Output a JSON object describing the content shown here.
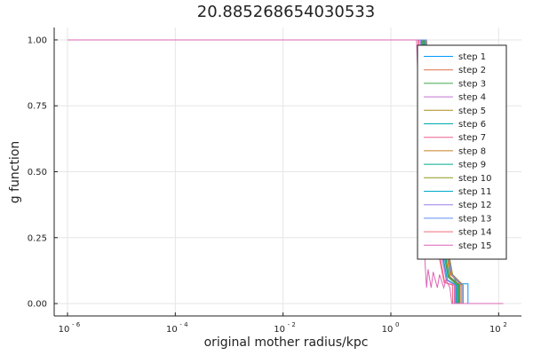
{
  "chart_data": {
    "type": "line",
    "title": "20.885268654030533",
    "xlabel": "original mother radius/kpc",
    "ylabel": "g function",
    "x_scale": "log10",
    "xlim": [
      1e-06,
      150
    ],
    "ylim": [
      -0.02,
      1.02
    ],
    "x_ticks": [
      {
        "base": "10",
        "exp": "- 6",
        "value": 1e-06
      },
      {
        "base": "10",
        "exp": "- 4",
        "value": 0.0001
      },
      {
        "base": "10",
        "exp": "- 2",
        "value": 0.01
      },
      {
        "base": "10",
        "exp": "0",
        "value": 1
      },
      {
        "base": "10",
        "exp": "2",
        "value": 100
      }
    ],
    "y_ticks": [
      "0.00",
      "0.25",
      "0.50",
      "0.75",
      "1.00"
    ],
    "grid": true,
    "legend_position": "right",
    "series": [
      {
        "name": "step 1",
        "color": "#009AFA",
        "x": [
          1e-06,
          4.2,
          5.0,
          6.5,
          9.0,
          13.0,
          17.0,
          27.0,
          27.0,
          120
        ],
        "y": [
          1.0,
          1.0,
          0.78,
          0.5,
          0.28,
          0.12,
          0.075,
          0.075,
          0.0,
          0.0
        ]
      },
      {
        "name": "step 2",
        "color": "#E36F47",
        "x": [
          1e-06,
          4.4,
          5.2,
          6.8,
          9.4,
          13.0,
          20.0,
          20.0,
          120
        ],
        "y": [
          1.0,
          1.0,
          0.77,
          0.49,
          0.27,
          0.11,
          0.07,
          0.0,
          0.0
        ]
      },
      {
        "name": "step 3",
        "color": "#3EA44E",
        "x": [
          1e-06,
          4.0,
          4.8,
          6.2,
          8.6,
          12.0,
          18.0,
          18.0,
          120
        ],
        "y": [
          1.0,
          1.0,
          0.76,
          0.48,
          0.26,
          0.1,
          0.07,
          0.0,
          0.0
        ]
      },
      {
        "name": "step 4",
        "color": "#C371D2",
        "x": [
          1e-06,
          3.6,
          4.3,
          5.6,
          7.8,
          11.0,
          16.0,
          16.0,
          120
        ],
        "y": [
          1.0,
          1.0,
          0.76,
          0.47,
          0.25,
          0.09,
          0.07,
          0.0,
          0.0
        ]
      },
      {
        "name": "step 5",
        "color": "#AC8D18",
        "x": [
          1e-06,
          4.6,
          5.5,
          7.2,
          10.0,
          14.0,
          22.0,
          22.0,
          120
        ],
        "y": [
          1.0,
          1.0,
          0.78,
          0.5,
          0.28,
          0.11,
          0.07,
          0.0,
          0.0
        ]
      },
      {
        "name": "step 6",
        "color": "#00A9AD",
        "x": [
          1e-06,
          3.8,
          4.6,
          6.0,
          8.3,
          11.5,
          17.0,
          17.0,
          120
        ],
        "y": [
          1.0,
          1.0,
          0.77,
          0.49,
          0.26,
          0.1,
          0.07,
          0.0,
          0.0
        ]
      },
      {
        "name": "step 7",
        "color": "#ED5E93",
        "x": [
          1e-06,
          3.3,
          4.0,
          5.2,
          7.2,
          10.0,
          15.0,
          15.0,
          120
        ],
        "y": [
          1.0,
          1.0,
          0.75,
          0.46,
          0.24,
          0.08,
          0.07,
          0.0,
          0.0
        ]
      },
      {
        "name": "step 8",
        "color": "#C68125",
        "x": [
          1e-06,
          4.3,
          5.1,
          6.7,
          9.2,
          12.8,
          19.0,
          19.0,
          120
        ],
        "y": [
          1.0,
          1.0,
          0.77,
          0.49,
          0.27,
          0.1,
          0.07,
          0.0,
          0.0
        ]
      },
      {
        "name": "step 9",
        "color": "#00A98D",
        "x": [
          1e-06,
          4.1,
          4.9,
          6.4,
          8.8,
          12.2,
          18.5,
          18.5,
          120
        ],
        "y": [
          1.0,
          1.0,
          0.77,
          0.48,
          0.26,
          0.1,
          0.07,
          0.0,
          0.0
        ]
      },
      {
        "name": "step 10",
        "color": "#8E971D",
        "x": [
          1e-06,
          3.9,
          4.7,
          6.1,
          8.5,
          11.8,
          17.5,
          17.5,
          120
        ],
        "y": [
          1.0,
          1.0,
          0.76,
          0.48,
          0.26,
          0.1,
          0.07,
          0.0,
          0.0
        ]
      },
      {
        "name": "step 11",
        "color": "#00A8CB",
        "x": [
          1e-06,
          3.7,
          4.4,
          5.8,
          8.0,
          11.2,
          16.5,
          16.5,
          120
        ],
        "y": [
          1.0,
          1.0,
          0.76,
          0.47,
          0.25,
          0.09,
          0.07,
          0.0,
          0.0
        ]
      },
      {
        "name": "step 12",
        "color": "#9B7FE8",
        "x": [
          1e-06,
          3.5,
          4.2,
          5.5,
          7.6,
          10.6,
          15.5,
          15.5,
          120
        ],
        "y": [
          1.0,
          1.0,
          0.75,
          0.47,
          0.25,
          0.09,
          0.07,
          0.0,
          0.0
        ]
      },
      {
        "name": "step 13",
        "color": "#618DF6",
        "x": [
          1e-06,
          4.5,
          5.4,
          7.0,
          9.7,
          13.5,
          21.0,
          21.0,
          120
        ],
        "y": [
          1.0,
          1.0,
          0.78,
          0.5,
          0.28,
          0.11,
          0.07,
          0.0,
          0.0
        ]
      },
      {
        "name": "step 14",
        "color": "#F16C7A",
        "x": [
          1e-06,
          3.2,
          3.8,
          5.0,
          7.0,
          9.7,
          14.0,
          14.0,
          120
        ],
        "y": [
          1.0,
          1.0,
          0.74,
          0.45,
          0.23,
          0.08,
          0.07,
          0.0,
          0.0
        ]
      },
      {
        "name": "step 15",
        "color": "#DD64B5",
        "x": [
          1e-06,
          3.0,
          3.5,
          3.9,
          3.9,
          4.6,
          4.9,
          5.6,
          6.1,
          7.3,
          8.0,
          9.6,
          10.5,
          12.5,
          13.5,
          120
        ],
        "y": [
          1.0,
          1.0,
          0.6,
          0.3,
          0.3,
          0.06,
          0.13,
          0.06,
          0.12,
          0.06,
          0.11,
          0.06,
          0.09,
          0.06,
          0.0,
          0.0
        ]
      }
    ]
  }
}
